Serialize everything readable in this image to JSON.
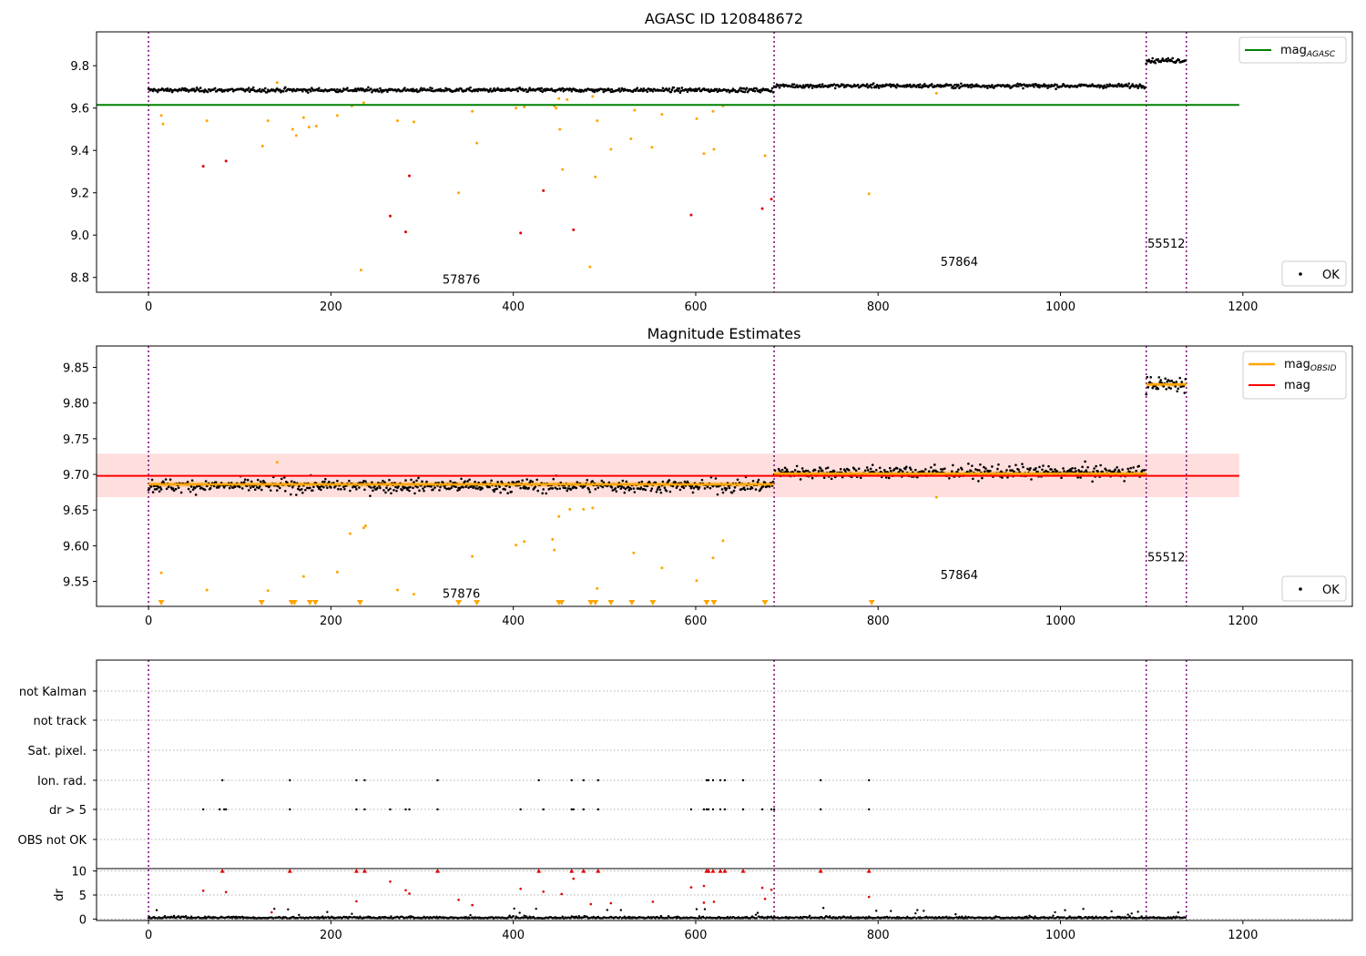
{
  "chart_data": [
    {
      "type": "scatter",
      "title": "AGASC ID 120848672",
      "xlim": [
        -57,
        1320
      ],
      "ylim": [
        8.73,
        9.96
      ],
      "xticks": [
        0,
        200,
        400,
        600,
        800,
        1000,
        1200
      ],
      "yticks": [
        8.8,
        9.0,
        9.2,
        9.4,
        9.6,
        9.8
      ],
      "ytick_labels": [
        "8.8",
        "9.0",
        "9.2",
        "9.4",
        "9.6",
        "9.8"
      ],
      "mag_agasc": 9.615,
      "mag_agasc_xrange": [
        -57,
        1196
      ],
      "obsid_boundaries": [
        0,
        686,
        1094,
        1138
      ],
      "obsid_labels": [
        {
          "text": "57876",
          "x": 343,
          "y": 8.77
        },
        {
          "text": "57864",
          "x": 889,
          "y": 8.855
        },
        {
          "text": "55512",
          "x": 1116,
          "y": 8.94
        }
      ],
      "segments": [
        {
          "x": [
            0,
            686
          ],
          "y_mean": 9.685,
          "scatter": 0.012
        },
        {
          "x": [
            686,
            1094
          ],
          "y_mean": 9.705,
          "scatter": 0.012
        },
        {
          "x": [
            1094,
            1138
          ],
          "y_mean": 9.825,
          "scatter": 0.014
        }
      ],
      "outliers_orange": [
        [
          14,
          9.565
        ],
        [
          16,
          9.525
        ],
        [
          64,
          9.54
        ],
        [
          125,
          9.42
        ],
        [
          131,
          9.54
        ],
        [
          141,
          9.72
        ],
        [
          158,
          9.5
        ],
        [
          162,
          9.47
        ],
        [
          170,
          9.555
        ],
        [
          176,
          9.51
        ],
        [
          184,
          9.515
        ],
        [
          207,
          9.565
        ],
        [
          223,
          9.61
        ],
        [
          233,
          8.835
        ],
        [
          236,
          9.625
        ],
        [
          273,
          9.54
        ],
        [
          291,
          9.535
        ],
        [
          340,
          9.2
        ],
        [
          355,
          9.585
        ],
        [
          360,
          9.435
        ],
        [
          403,
          9.6
        ],
        [
          412,
          9.605
        ],
        [
          445,
          9.61
        ],
        [
          447,
          9.6
        ],
        [
          450,
          9.645
        ],
        [
          451,
          9.5
        ],
        [
          454,
          9.31
        ],
        [
          459,
          9.64
        ],
        [
          484,
          8.85
        ],
        [
          487,
          9.655
        ],
        [
          490,
          9.275
        ],
        [
          492,
          9.54
        ],
        [
          507,
          9.405
        ],
        [
          529,
          9.455
        ],
        [
          533,
          9.59
        ],
        [
          552,
          9.415
        ],
        [
          563,
          9.57
        ],
        [
          601,
          9.55
        ],
        [
          609,
          9.385
        ],
        [
          619,
          9.585
        ],
        [
          620,
          9.405
        ],
        [
          630,
          9.61
        ],
        [
          676,
          9.375
        ],
        [
          790,
          9.195
        ],
        [
          864,
          9.67
        ]
      ],
      "outliers_red": [
        [
          60,
          9.325
        ],
        [
          85,
          9.35
        ],
        [
          265,
          9.09
        ],
        [
          282,
          9.015
        ],
        [
          286,
          9.28
        ],
        [
          408,
          9.01
        ],
        [
          433,
          9.21
        ],
        [
          466,
          9.025
        ],
        [
          595,
          9.095
        ],
        [
          673,
          9.125
        ],
        [
          683,
          9.17
        ]
      ],
      "legend": [
        {
          "label": "mag",
          "sub": "AGASC",
          "color": "#008000",
          "kind": "line"
        },
        {
          "label": "OK",
          "color": "#000000",
          "kind": "dot"
        }
      ]
    },
    {
      "type": "scatter",
      "title": "Magnitude Estimates",
      "xlim": [
        -57,
        1320
      ],
      "ylim": [
        9.515,
        9.88
      ],
      "xticks": [
        0,
        200,
        400,
        600,
        800,
        1000,
        1200
      ],
      "yticks": [
        9.55,
        9.6,
        9.65,
        9.7,
        9.75,
        9.8,
        9.85
      ],
      "ytick_labels": [
        "9.55",
        "9.60",
        "9.65",
        "9.70",
        "9.75",
        "9.80",
        "9.85"
      ],
      "mag": 9.698,
      "mag_band": [
        9.668,
        9.729
      ],
      "mag_xrange": [
        -57,
        1196
      ],
      "mag_obsid": [
        {
          "x": [
            0,
            686
          ],
          "y": 9.686
        },
        {
          "x": [
            686,
            1094
          ],
          "y": 9.701
        },
        {
          "x": [
            1094,
            1138
          ],
          "y": 9.826
        }
      ],
      "obsid_boundaries": [
        0,
        686,
        1094,
        1138
      ],
      "obsid_labels": [
        {
          "text": "57876",
          "x": 343,
          "y": 9.527
        },
        {
          "text": "57864",
          "x": 889,
          "y": 9.553
        },
        {
          "text": "55512",
          "x": 1116,
          "y": 9.578
        }
      ],
      "segments": [
        {
          "x": [
            0,
            686
          ],
          "y_mean": 9.684,
          "scatter": 0.012
        },
        {
          "x": [
            686,
            1094
          ],
          "y_mean": 9.703,
          "scatter": 0.012
        },
        {
          "x": [
            1094,
            1138
          ],
          "y_mean": 9.826,
          "scatter": 0.015
        }
      ],
      "outliers_orange": [
        [
          14,
          9.562
        ],
        [
          64,
          9.538
        ],
        [
          131,
          9.537
        ],
        [
          141,
          9.717
        ],
        [
          170,
          9.557
        ],
        [
          207,
          9.563
        ],
        [
          221,
          9.617
        ],
        [
          236,
          9.625
        ],
        [
          238,
          9.628
        ],
        [
          273,
          9.538
        ],
        [
          291,
          9.532
        ],
        [
          355,
          9.585
        ],
        [
          403,
          9.601
        ],
        [
          412,
          9.606
        ],
        [
          443,
          9.609
        ],
        [
          445,
          9.594
        ],
        [
          450,
          9.641
        ],
        [
          462,
          9.651
        ],
        [
          477,
          9.651
        ],
        [
          487,
          9.653
        ],
        [
          492,
          9.54
        ],
        [
          532,
          9.59
        ],
        [
          563,
          9.569
        ],
        [
          601,
          9.551
        ],
        [
          619,
          9.583
        ],
        [
          630,
          9.607
        ],
        [
          864,
          9.668
        ]
      ],
      "floor_markers": [
        14,
        124,
        157,
        160,
        177,
        183,
        232,
        340,
        360,
        450,
        453,
        485,
        490,
        507,
        530,
        553,
        612,
        620,
        676,
        793
      ],
      "legend": [
        {
          "label": "mag",
          "sub": "OBSID",
          "color": "#ffa500",
          "kind": "line"
        },
        {
          "label": "mag",
          "color": "#ff0000",
          "kind": "line"
        },
        {
          "label": "OK",
          "color": "#000000",
          "kind": "dot"
        }
      ]
    },
    {
      "type": "scatter",
      "title": "",
      "xlim": [
        -57,
        1320
      ],
      "xticks": [
        0,
        200,
        400,
        600,
        800,
        1000,
        1200
      ],
      "flag_rows": [
        "not Kalman",
        "not track",
        "Sat. pixel.",
        "Ion. rad.",
        "dr > 5",
        "OBS not OK"
      ],
      "flags": {
        "Ion. rad.": [
          81,
          155,
          228,
          237,
          317,
          428,
          464,
          477,
          493,
          612,
          614,
          619,
          627,
          632,
          652,
          737,
          790
        ],
        "dr > 5": [
          60,
          78,
          83,
          85,
          155,
          228,
          237,
          265,
          282,
          286,
          317,
          408,
          433,
          464,
          466,
          477,
          493,
          595,
          609,
          612,
          614,
          619,
          627,
          632,
          652,
          673,
          683,
          686,
          737,
          790
        ]
      },
      "obsid_boundaries": [
        0,
        686,
        1094,
        1138
      ],
      "dr_ylabel": "dr",
      "dr_ylim": [
        -0.3,
        10.5
      ],
      "dr_yticks": [
        0,
        5,
        10
      ],
      "dr_clipped": [
        81,
        155,
        228,
        237,
        317,
        428,
        464,
        477,
        493,
        612,
        614,
        619,
        627,
        632,
        652,
        737,
        790
      ],
      "dr_red": [
        [
          60,
          5.9
        ],
        [
          85,
          5.6
        ],
        [
          265,
          7.8
        ],
        [
          282,
          6.0
        ],
        [
          286,
          5.3
        ],
        [
          408,
          6.3
        ],
        [
          433,
          5.7
        ],
        [
          466,
          8.4
        ],
        [
          595,
          6.6
        ],
        [
          609,
          6.9
        ],
        [
          673,
          6.5
        ],
        [
          683,
          6.1
        ],
        [
          790,
          4.6
        ],
        [
          135,
          1.4
        ],
        [
          228,
          3.7
        ],
        [
          340,
          4.0
        ],
        [
          355,
          2.9
        ],
        [
          453,
          5.2
        ],
        [
          485,
          3.1
        ],
        [
          507,
          3.3
        ],
        [
          553,
          3.6
        ],
        [
          609,
          3.4
        ],
        [
          620,
          3.6
        ],
        [
          676,
          4.2
        ]
      ]
    }
  ]
}
